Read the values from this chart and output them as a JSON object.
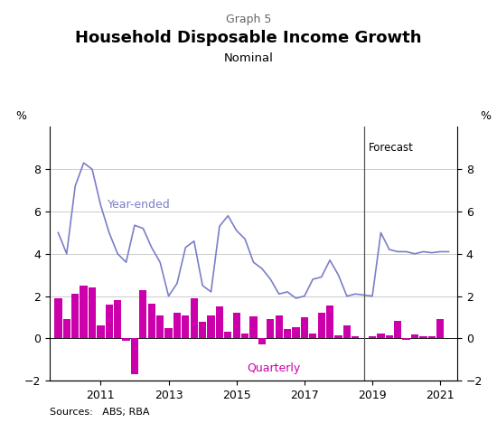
{
  "graph_label": "Graph 5",
  "title": "Household Disposable Income Growth",
  "subtitle": "Nominal",
  "source": "Sources:   ABS; RBA",
  "ylim": [
    -2,
    10
  ],
  "yticks": [
    -2,
    0,
    2,
    4,
    6,
    8
  ],
  "ylabel_left": "%",
  "ylabel_right": "%",
  "forecast_x": 2018.75,
  "forecast_label": "Forecast",
  "line_color": "#7B7EC8",
  "bar_color": "#CC00AA",
  "year_ended_label": "Year-ended",
  "quarterly_label": "Quarterly",
  "quarterly_dates": [
    2009.75,
    2010.0,
    2010.25,
    2010.5,
    2010.75,
    2011.0,
    2011.25,
    2011.5,
    2011.75,
    2012.0,
    2012.25,
    2012.5,
    2012.75,
    2013.0,
    2013.25,
    2013.5,
    2013.75,
    2014.0,
    2014.25,
    2014.5,
    2014.75,
    2015.0,
    2015.25,
    2015.5,
    2015.75,
    2016.0,
    2016.25,
    2016.5,
    2016.75,
    2017.0,
    2017.25,
    2017.5,
    2017.75,
    2018.0,
    2018.25,
    2018.5,
    2019.0,
    2019.25,
    2019.5,
    2019.75,
    2020.0,
    2020.25,
    2020.5,
    2020.75,
    2021.0
  ],
  "quarterly_values": [
    1.9,
    0.9,
    2.1,
    2.5,
    2.4,
    0.6,
    1.6,
    1.8,
    -0.1,
    -1.7,
    2.3,
    1.65,
    1.1,
    0.5,
    1.2,
    1.1,
    1.9,
    0.8,
    1.1,
    1.5,
    0.3,
    1.2,
    0.25,
    1.05,
    -0.3,
    0.9,
    1.1,
    0.45,
    0.55,
    1.0,
    0.25,
    1.2,
    1.55,
    0.15,
    0.6,
    0.1,
    0.1,
    0.25,
    0.15,
    0.85,
    -0.05,
    0.2,
    0.12,
    0.1,
    0.9
  ],
  "year_ended_dates": [
    2009.75,
    2010.0,
    2010.25,
    2010.5,
    2010.75,
    2011.0,
    2011.25,
    2011.5,
    2011.75,
    2012.0,
    2012.25,
    2012.5,
    2012.75,
    2013.0,
    2013.25,
    2013.5,
    2013.75,
    2014.0,
    2014.25,
    2014.5,
    2014.75,
    2015.0,
    2015.25,
    2015.5,
    2015.75,
    2016.0,
    2016.25,
    2016.5,
    2016.75,
    2017.0,
    2017.25,
    2017.5,
    2017.75,
    2018.0,
    2018.25,
    2018.5,
    2019.0,
    2019.25,
    2019.5,
    2019.75,
    2020.0,
    2020.25,
    2020.5,
    2020.75,
    2021.0,
    2021.25
  ],
  "year_ended_values": [
    5.0,
    4.0,
    7.2,
    8.3,
    8.0,
    6.3,
    5.0,
    4.0,
    3.6,
    5.35,
    5.2,
    4.3,
    3.6,
    2.0,
    2.6,
    4.3,
    4.6,
    2.5,
    2.2,
    5.3,
    5.8,
    5.1,
    4.7,
    3.6,
    3.3,
    2.8,
    2.1,
    2.2,
    1.9,
    2.0,
    2.8,
    2.9,
    3.7,
    3.0,
    2.0,
    2.1,
    2.0,
    5.0,
    4.2,
    4.1,
    4.1,
    4.0,
    4.1,
    4.05,
    4.1,
    4.1
  ],
  "xmin": 2009.5,
  "xmax": 2021.5,
  "xticks": [
    2011,
    2013,
    2015,
    2017,
    2019,
    2021
  ]
}
